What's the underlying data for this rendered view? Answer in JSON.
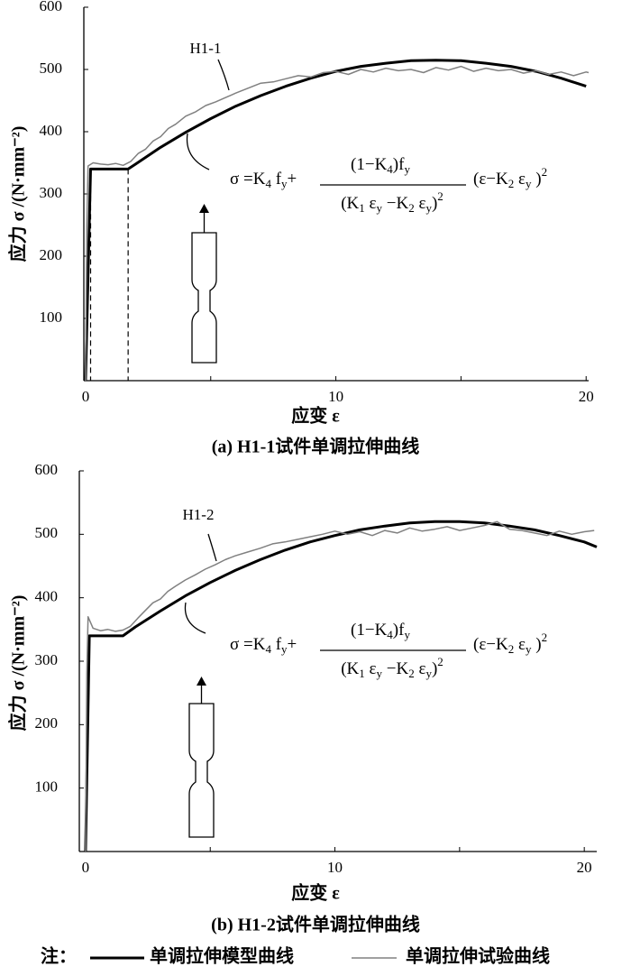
{
  "legend_title": "注：",
  "chart_data": [
    {
      "type": "line",
      "title": "(a) H1-1试件单调拉伸曲线",
      "x_label": "应变 ε",
      "y_label": "应力 σ /(N·mm⁻²)",
      "annotation": "H1-1",
      "formula": {
        "left": [
          {
            "text": "σ =K"
          },
          {
            "text": "4",
            "pos": "sub"
          },
          {
            "text": " f"
          },
          {
            "text": "y",
            "pos": "sub"
          },
          {
            "text": "+"
          }
        ],
        "numerator": [
          {
            "text": "(1−K"
          },
          {
            "text": "4",
            "pos": "sub"
          },
          {
            "text": ")f"
          },
          {
            "text": "y",
            "pos": "sub"
          }
        ],
        "denominator": [
          {
            "text": "(K"
          },
          {
            "text": "1",
            "pos": "sub"
          },
          {
            "text": " ε"
          },
          {
            "text": "y",
            "pos": "sub"
          },
          {
            "text": " −K"
          },
          {
            "text": "2",
            "pos": "sub"
          },
          {
            "text": " ε"
          },
          {
            "text": "y",
            "pos": "sub"
          },
          {
            "text": ")"
          },
          {
            "text": "2",
            "pos": "sup"
          }
        ],
        "right": [
          {
            "text": "(ε−K"
          },
          {
            "text": "2",
            "pos": "sub"
          },
          {
            "text": " ε"
          },
          {
            "text": "y",
            "pos": "sub"
          },
          {
            "text": " )"
          },
          {
            "text": "2",
            "pos": "sup"
          }
        ]
      },
      "xlim": [
        -0.07,
        20.1
      ],
      "ylim": [
        0,
        600
      ],
      "xticks": [
        0,
        10,
        20
      ],
      "xminor": [
        5,
        15
      ],
      "yticks": [
        100,
        200,
        300,
        400,
        500,
        600
      ],
      "grid": false,
      "drop_lines": true,
      "series": [
        {
          "name": "单调拉伸模型曲线",
          "color": "#000000",
          "line_width": 3,
          "x": [
            0,
            0.2,
            1.7,
            2,
            3,
            4,
            5,
            6,
            7,
            8,
            9,
            10,
            11,
            12,
            13,
            14,
            15,
            16,
            17,
            18,
            19,
            20
          ],
          "values": [
            0,
            340,
            340,
            348,
            375,
            399,
            421,
            441,
            458,
            473,
            486,
            497,
            505,
            510,
            514,
            515,
            514,
            510,
            505,
            497,
            486,
            473
          ]
        },
        {
          "name": "单调拉伸试验曲线",
          "color": "#808080",
          "line_width": 1.5,
          "x": [
            0,
            0.05,
            0.1,
            0.3,
            0.6,
            0.9,
            1.2,
            1.5,
            1.8,
            2.1,
            2.4,
            2.7,
            3,
            3.3,
            3.6,
            4,
            4.4,
            4.8,
            5.2,
            5.6,
            6,
            6.5,
            7,
            7.5,
            8,
            8.5,
            9,
            9.5,
            10,
            10.5,
            11,
            11.5,
            12,
            12.5,
            13,
            13.5,
            14,
            14.5,
            15,
            15.5,
            16,
            16.5,
            17,
            17.5,
            18,
            18.5,
            19,
            19.5,
            20,
            20.1
          ],
          "values": [
            0,
            250,
            345,
            350,
            348,
            347,
            349,
            346,
            352,
            365,
            372,
            385,
            392,
            405,
            412,
            425,
            432,
            442,
            448,
            455,
            462,
            470,
            478,
            480,
            485,
            490,
            488,
            495,
            497,
            492,
            500,
            496,
            502,
            498,
            500,
            495,
            503,
            499,
            505,
            497,
            502,
            498,
            500,
            494,
            498,
            492,
            496,
            490,
            496,
            495
          ]
        }
      ]
    },
    {
      "type": "line",
      "title": "(b) H1-2试件单调拉伸曲线",
      "x_label": "应变 ε",
      "y_label": "应力 σ /(N·mm⁻²)",
      "annotation": "H1-2",
      "formula": {
        "left": [
          {
            "text": "σ =K"
          },
          {
            "text": "4",
            "pos": "sub"
          },
          {
            "text": " f"
          },
          {
            "text": "y",
            "pos": "sub"
          },
          {
            "text": "+"
          }
        ],
        "numerator": [
          {
            "text": "(1−K"
          },
          {
            "text": "4",
            "pos": "sub"
          },
          {
            "text": ")f"
          },
          {
            "text": "y",
            "pos": "sub"
          }
        ],
        "denominator": [
          {
            "text": "(K"
          },
          {
            "text": "1",
            "pos": "sub"
          },
          {
            "text": " ε"
          },
          {
            "text": "y",
            "pos": "sub"
          },
          {
            "text": " −K"
          },
          {
            "text": "2",
            "pos": "sub"
          },
          {
            "text": " ε"
          },
          {
            "text": "y",
            "pos": "sub"
          },
          {
            "text": ")"
          },
          {
            "text": "2",
            "pos": "sup"
          }
        ],
        "right": [
          {
            "text": "(ε−K"
          },
          {
            "text": "2",
            "pos": "sub"
          },
          {
            "text": " ε"
          },
          {
            "text": "y",
            "pos": "sub"
          },
          {
            "text": " )"
          },
          {
            "text": "2",
            "pos": "sup"
          }
        ]
      },
      "xlim": [
        -0.25,
        20.5
      ],
      "ylim": [
        0,
        600
      ],
      "xticks": [
        0,
        10,
        20
      ],
      "xminor": [
        5,
        15
      ],
      "yticks": [
        100,
        200,
        300,
        400,
        500,
        600
      ],
      "grid": false,
      "drop_lines": false,
      "series": [
        {
          "color": "#000000",
          "line_width": 3,
          "x": [
            0,
            0.15,
            1.5,
            2,
            3,
            4,
            5,
            6,
            7,
            8,
            9,
            10,
            11,
            12,
            13,
            14,
            15,
            16,
            17,
            18,
            19,
            20,
            20.5
          ],
          "values": [
            0,
            340,
            340,
            354,
            379,
            403,
            424,
            443,
            460,
            475,
            488,
            498,
            507,
            513,
            518,
            520,
            520,
            518,
            513,
            507,
            498,
            488,
            480
          ]
        },
        {
          "color": "#808080",
          "line_width": 1.5,
          "x": [
            0,
            0.05,
            0.1,
            0.3,
            0.6,
            0.9,
            1.2,
            1.5,
            1.8,
            2.1,
            2.4,
            2.7,
            3,
            3.3,
            3.6,
            4,
            4.4,
            4.8,
            5.2,
            5.6,
            6,
            6.5,
            7,
            7.5,
            8,
            8.5,
            9,
            9.5,
            10,
            10.5,
            11,
            11.5,
            12,
            12.5,
            13,
            13.5,
            14,
            14.5,
            15,
            15.5,
            16,
            16.5,
            17,
            17.5,
            18,
            18.5,
            19,
            19.5,
            20,
            20.4
          ],
          "values": [
            0,
            280,
            370,
            352,
            348,
            350,
            347,
            349,
            355,
            368,
            380,
            392,
            398,
            410,
            418,
            428,
            436,
            445,
            452,
            460,
            466,
            472,
            478,
            485,
            488,
            492,
            496,
            500,
            505,
            500,
            504,
            498,
            506,
            502,
            510,
            505,
            508,
            512,
            506,
            510,
            514,
            520,
            508,
            506,
            502,
            498,
            505,
            500,
            504,
            506
          ]
        }
      ]
    }
  ]
}
